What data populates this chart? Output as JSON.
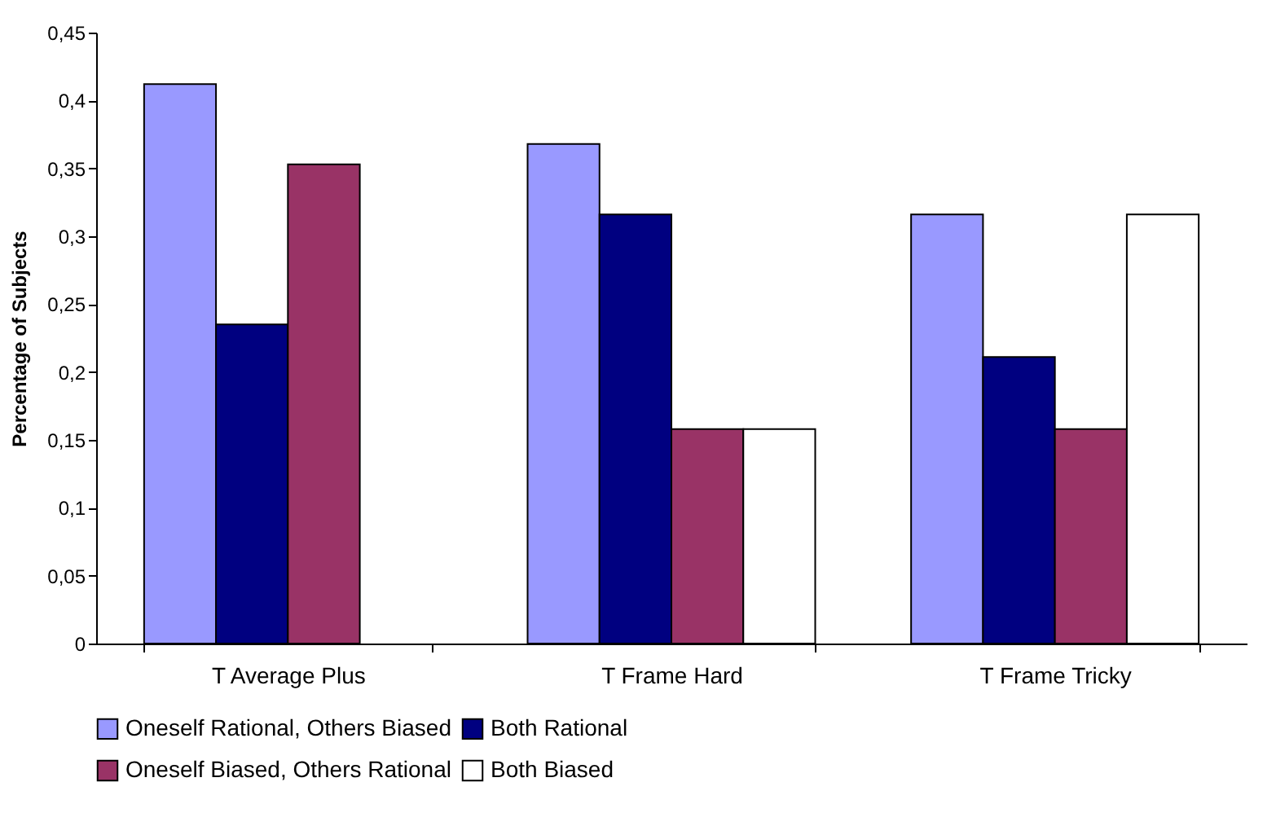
{
  "chart_data": {
    "type": "bar",
    "ylabel": "Percentage of Subjects",
    "categories": [
      "T Average Plus",
      "T Frame Hard",
      "T Frame Tricky"
    ],
    "series": [
      {
        "name": "Oneself Rational, Others Biased",
        "color": "#9999ff",
        "values": [
          0.412,
          0.368,
          0.316
        ]
      },
      {
        "name": "Both Rational",
        "color": "#000080",
        "values": [
          0.235,
          0.316,
          0.211
        ]
      },
      {
        "name": "Oneself Biased, Others Rational",
        "color": "#993366",
        "values": [
          0.353,
          0.158,
          0.158
        ]
      },
      {
        "name": "Both Biased",
        "color": "#ffffff",
        "values": [
          null,
          0.158,
          0.316
        ]
      }
    ],
    "ylim": [
      0,
      0.45
    ],
    "yticks": [
      0,
      {
        "value": 0.05,
        "label": "0,05"
      },
      {
        "value": 0.1,
        "label": "0,1"
      },
      {
        "value": 0.15,
        "label": "0,15"
      },
      {
        "value": 0.2,
        "label": "0,2"
      },
      {
        "value": 0.25,
        "label": "0,25"
      },
      {
        "value": 0.3,
        "label": "0,3"
      },
      {
        "value": 0.35,
        "label": "0,35"
      },
      {
        "value": 0.4,
        "label": "0,4"
      },
      {
        "value": 0.45,
        "label": "0,45"
      }
    ],
    "grid": false,
    "legend": "bottom"
  }
}
